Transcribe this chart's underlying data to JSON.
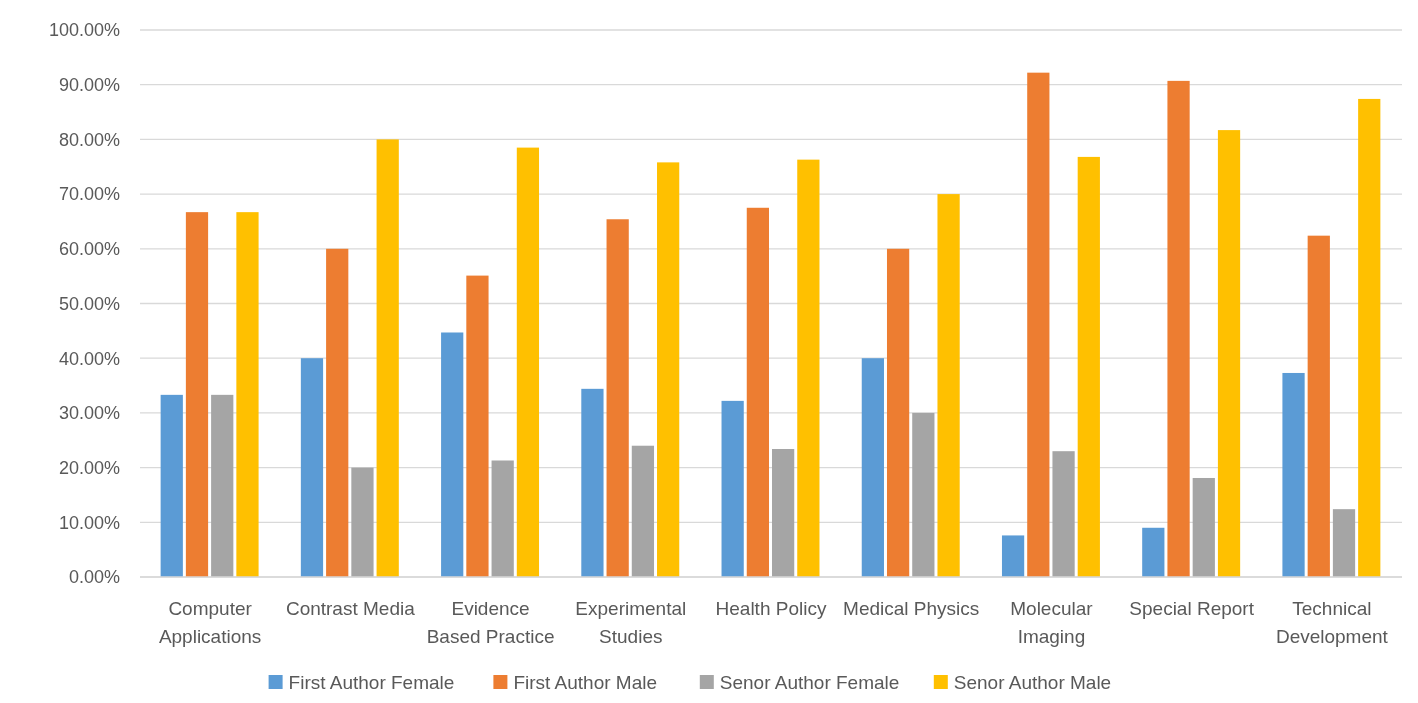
{
  "chart_data": {
    "type": "bar",
    "categories": [
      "Computer Applications",
      "Contrast Media",
      "Evidence Based Practice",
      "Experimental Studies",
      "Health Policy",
      "Medical Physics",
      "Molecular Imaging",
      "Special Report",
      "Technical Development"
    ],
    "series": [
      {
        "name": "First Author Female",
        "color": "#5b9bd5",
        "values": [
          33.3,
          40,
          44.7,
          34.4,
          32.2,
          40,
          7.6,
          9.0,
          37.3
        ]
      },
      {
        "name": "First Author Male",
        "color": "#ed7d31",
        "values": [
          66.7,
          60,
          55.1,
          65.4,
          67.5,
          60,
          92.2,
          90.7,
          62.4
        ]
      },
      {
        "name": "Senor Author  Female",
        "color": "#a5a5a5",
        "values": [
          33.3,
          20,
          21.3,
          24.0,
          23.4,
          30,
          23.0,
          18.1,
          12.4
        ]
      },
      {
        "name": "Senor Author  Male",
        "color": "#ffc000",
        "values": [
          66.7,
          80,
          78.5,
          75.8,
          76.3,
          70,
          76.8,
          81.7,
          87.4
        ]
      }
    ],
    "ylim": [
      0,
      100
    ],
    "yticks": [
      {
        "value": 0,
        "label": "0.00%"
      },
      {
        "value": 10,
        "label": "10.00%"
      },
      {
        "value": 20,
        "label": "20.00%"
      },
      {
        "value": 30,
        "label": "30.00%"
      },
      {
        "value": 40,
        "label": "40.00%"
      },
      {
        "value": 50,
        "label": "50.00%"
      },
      {
        "value": 60,
        "label": "60.00%"
      },
      {
        "value": 70,
        "label": "70.00%"
      },
      {
        "value": 80,
        "label": "80.00%"
      },
      {
        "value": 90,
        "label": "90.00%"
      },
      {
        "value": 100,
        "label": "100.00%"
      }
    ],
    "grid": "y",
    "legend": "bottom"
  }
}
